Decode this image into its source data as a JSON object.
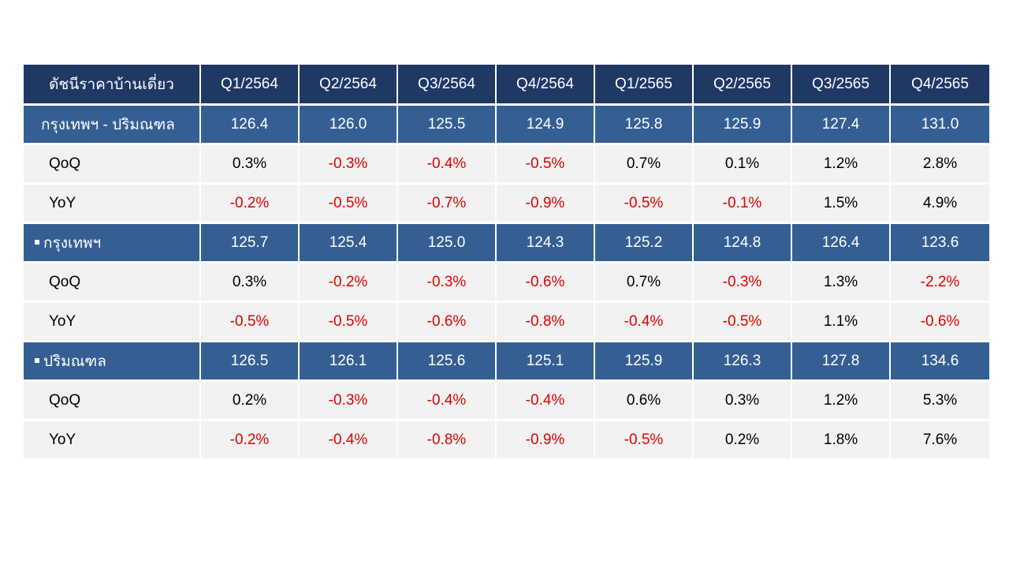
{
  "table": {
    "header": [
      "ดัชนีราคาบ้านเดี่ยว",
      "Q1/2564",
      "Q2/2564",
      "Q3/2564",
      "Q4/2564",
      "Q1/2565",
      "Q2/2565",
      "Q3/2565",
      "Q4/2565"
    ],
    "groups": [
      {
        "label": "กรุงเทพฯ - ปริมณฑล",
        "bullet": false,
        "values": [
          "126.4",
          "126.0",
          "125.5",
          "124.9",
          "125.8",
          "125.9",
          "127.4",
          "131.0"
        ],
        "qoq_label": "QoQ",
        "qoq": [
          "0.3%",
          "-0.3%",
          "-0.4%",
          "-0.5%",
          "0.7%",
          "0.1%",
          "1.2%",
          "2.8%"
        ],
        "yoy_label": "YoY",
        "yoy": [
          "-0.2%",
          "-0.5%",
          "-0.7%",
          "-0.9%",
          "-0.5%",
          "-0.1%",
          "1.5%",
          "4.9%"
        ]
      },
      {
        "label": "กรุงเทพฯ",
        "bullet": true,
        "values": [
          "125.7",
          "125.4",
          "125.0",
          "124.3",
          "125.2",
          "124.8",
          "126.4",
          "123.6"
        ],
        "qoq_label": "QoQ",
        "qoq": [
          "0.3%",
          "-0.2%",
          "-0.3%",
          "-0.6%",
          "0.7%",
          "-0.3%",
          "1.3%",
          "-2.2%"
        ],
        "yoy_label": "YoY",
        "yoy": [
          "-0.5%",
          "-0.5%",
          "-0.6%",
          "-0.8%",
          "-0.4%",
          "-0.5%",
          "1.1%",
          "-0.6%"
        ]
      },
      {
        "label": "ปริมณฑล",
        "bullet": true,
        "values": [
          "126.5",
          "126.1",
          "125.6",
          "125.1",
          "125.9",
          "126.3",
          "127.8",
          "134.6"
        ],
        "qoq_label": "QoQ",
        "qoq": [
          "0.2%",
          "-0.3%",
          "-0.4%",
          "-0.4%",
          "0.6%",
          "0.3%",
          "1.2%",
          "5.3%"
        ],
        "yoy_label": "YoY",
        "yoy": [
          "-0.2%",
          "-0.4%",
          "-0.8%",
          "-0.9%",
          "-0.5%",
          "0.2%",
          "1.8%",
          "7.6%"
        ]
      }
    ],
    "colors": {
      "header_bg": "#1f3864",
      "group_bg": "#355f93",
      "sub_bg": "#f2f2f2",
      "negative_text": "#e00000"
    }
  }
}
